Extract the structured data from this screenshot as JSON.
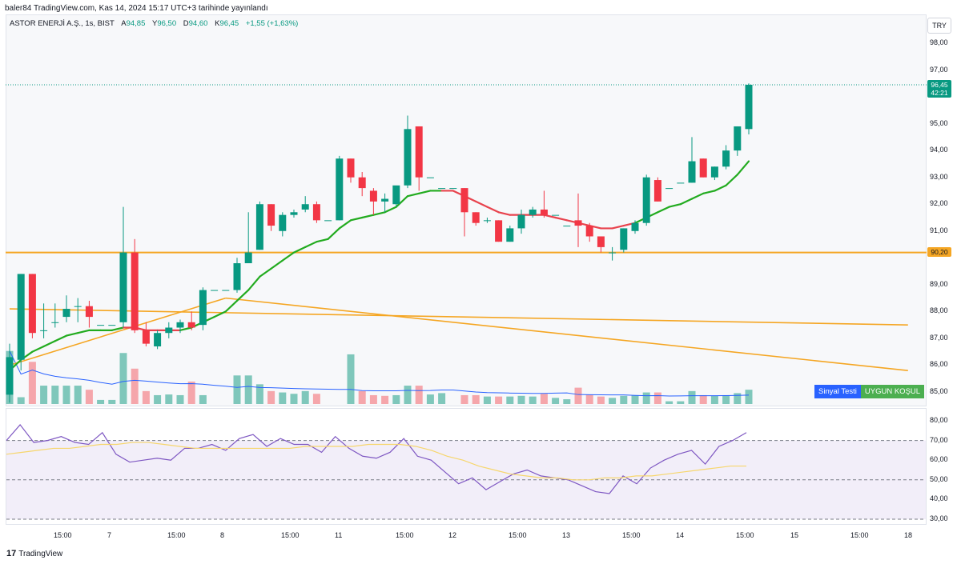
{
  "header": {
    "published": "baler84 TradingView.com, Kas 14, 2024 15:17 UTC+3 tarihinde yayınlandı"
  },
  "legend": {
    "symbol": "ASTOR ENERJİ A.Ş., 1s, BIST",
    "open_label": "A",
    "open": "94,85",
    "high_label": "Y",
    "high": "96,50",
    "low_label": "D",
    "low": "94,60",
    "close_label": "K",
    "close": "96,45",
    "change": "+1,55 (+1,63%)"
  },
  "currency_button": "TRY",
  "price_axis": [
    "98,00",
    "97,00",
    "95,00",
    "94,00",
    "93,00",
    "92,00",
    "91,00",
    "89,00",
    "88,00",
    "87,00",
    "86,00",
    "85,00"
  ],
  "rsi_axis": [
    "80,00",
    "70,00",
    "60,00",
    "50,00",
    "40,00",
    "30,00"
  ],
  "time_axis": [
    "15:00",
    "7",
    "15:00",
    "8",
    "15:00",
    "11",
    "15:00",
    "12",
    "15:00",
    "13",
    "15:00",
    "14",
    "15:00",
    "15",
    "15:00",
    "18"
  ],
  "last_price_tag": {
    "price": "96,45",
    "countdown": "42:21"
  },
  "support_tag": "90,20",
  "signal": {
    "label": "Sinyal Testi",
    "value": "UYGUN KOŞUL"
  },
  "footer": {
    "brand": "TradingView",
    "logo": "17"
  },
  "colors": {
    "up": "#089981",
    "down": "#f23645",
    "up_vol": "#7fc7bb",
    "down_vol": "#f5a6ab",
    "support": "#f5a623",
    "trend": "#f5a623",
    "ma_up": "#22ab1f",
    "ma_down": "#e8434d",
    "vol_ma": "#2962ff",
    "rsi": "#7e57c2",
    "rsi_ma": "#f6d66d",
    "signal_label_bg": "#2962ff",
    "signal_value_bg": "#4caf50"
  },
  "chart_data": {
    "type": "candlestick",
    "title": "ASTOR ENERJİ A.Ş., 1s, BIST",
    "ylim": [
      84.6,
      98.6
    ],
    "support_level": 90.2,
    "candles": [
      {
        "o": 84.9,
        "h": 86.8,
        "l": 84.6,
        "c": 86.3
      },
      {
        "o": 86.2,
        "h": 89.4,
        "l": 85.8,
        "c": 89.4
      },
      {
        "o": 89.4,
        "h": 89.4,
        "l": 87.0,
        "c": 87.2
      },
      {
        "o": 87.3,
        "h": 88.3,
        "l": 87.0,
        "c": 87.3
      },
      {
        "o": 87.6,
        "h": 88.3,
        "l": 87.4,
        "c": 87.6
      },
      {
        "o": 87.8,
        "h": 88.6,
        "l": 87.6,
        "c": 88.1
      },
      {
        "o": 88.2,
        "h": 88.5,
        "l": 87.6,
        "c": 88.2
      },
      {
        "o": 88.2,
        "h": 88.4,
        "l": 87.4,
        "c": 87.8
      },
      {
        "o": 87.5,
        "h": 87.5,
        "l": 87.5,
        "c": 87.5
      },
      {
        "o": 87.5,
        "h": 87.5,
        "l": 87.5,
        "c": 87.5
      },
      {
        "o": 87.6,
        "h": 91.9,
        "l": 87.4,
        "c": 90.2
      },
      {
        "o": 90.2,
        "h": 90.7,
        "l": 87.2,
        "c": 87.3
      },
      {
        "o": 87.3,
        "h": 87.6,
        "l": 86.7,
        "c": 86.8
      },
      {
        "o": 86.7,
        "h": 87.3,
        "l": 86.6,
        "c": 87.2
      },
      {
        "o": 87.2,
        "h": 87.6,
        "l": 87.0,
        "c": 87.4
      },
      {
        "o": 87.4,
        "h": 87.7,
        "l": 87.2,
        "c": 87.6
      },
      {
        "o": 87.6,
        "h": 88.0,
        "l": 87.3,
        "c": 87.4
      },
      {
        "o": 87.5,
        "h": 88.9,
        "l": 87.3,
        "c": 88.8
      },
      {
        "o": 88.8,
        "h": 88.8,
        "l": 88.8,
        "c": 88.8
      },
      {
        "o": 88.8,
        "h": 88.8,
        "l": 88.8,
        "c": 88.8
      },
      {
        "o": 88.8,
        "h": 90.0,
        "l": 88.7,
        "c": 89.8
      },
      {
        "o": 89.8,
        "h": 91.7,
        "l": 89.8,
        "c": 90.2
      },
      {
        "o": 90.3,
        "h": 92.1,
        "l": 90.3,
        "c": 92.0
      },
      {
        "o": 92.0,
        "h": 92.0,
        "l": 91.0,
        "c": 91.2
      },
      {
        "o": 91.0,
        "h": 91.7,
        "l": 90.8,
        "c": 91.6
      },
      {
        "o": 91.6,
        "h": 91.8,
        "l": 91.5,
        "c": 91.7
      },
      {
        "o": 91.8,
        "h": 92.3,
        "l": 91.7,
        "c": 92.0
      },
      {
        "o": 92.0,
        "h": 92.1,
        "l": 91.3,
        "c": 91.4
      },
      {
        "o": 91.4,
        "h": 91.4,
        "l": 91.4,
        "c": 91.4
      },
      {
        "o": 91.4,
        "h": 93.8,
        "l": 91.4,
        "c": 93.7
      },
      {
        "o": 93.7,
        "h": 93.7,
        "l": 92.8,
        "c": 93.0
      },
      {
        "o": 93.0,
        "h": 93.2,
        "l": 92.3,
        "c": 92.6
      },
      {
        "o": 92.5,
        "h": 92.6,
        "l": 91.6,
        "c": 92.1
      },
      {
        "o": 92.1,
        "h": 92.4,
        "l": 91.7,
        "c": 92.2
      },
      {
        "o": 92.0,
        "h": 92.6,
        "l": 91.9,
        "c": 92.7
      },
      {
        "o": 92.7,
        "h": 95.3,
        "l": 92.6,
        "c": 94.8
      },
      {
        "o": 94.9,
        "h": 94.9,
        "l": 92.5,
        "c": 93.0
      },
      {
        "o": 93.0,
        "h": 93.0,
        "l": 93.0,
        "c": 93.0
      },
      {
        "o": 92.6,
        "h": 92.6,
        "l": 92.6,
        "c": 92.6
      },
      {
        "o": 92.6,
        "h": 92.6,
        "l": 92.6,
        "c": 92.6
      },
      {
        "o": 92.6,
        "h": 92.6,
        "l": 90.8,
        "c": 91.7
      },
      {
        "o": 91.7,
        "h": 91.7,
        "l": 91.2,
        "c": 91.3
      },
      {
        "o": 91.4,
        "h": 91.5,
        "l": 91.3,
        "c": 91.4
      },
      {
        "o": 91.4,
        "h": 91.4,
        "l": 90.6,
        "c": 90.6
      },
      {
        "o": 90.6,
        "h": 91.2,
        "l": 90.6,
        "c": 91.1
      },
      {
        "o": 91.1,
        "h": 91.8,
        "l": 90.9,
        "c": 91.6
      },
      {
        "o": 91.6,
        "h": 91.9,
        "l": 91.5,
        "c": 91.8
      },
      {
        "o": 91.8,
        "h": 92.5,
        "l": 91.5,
        "c": 91.6
      },
      {
        "o": 91.6,
        "h": 91.6,
        "l": 91.6,
        "c": 91.6
      },
      {
        "o": 91.2,
        "h": 91.2,
        "l": 91.2,
        "c": 91.2
      },
      {
        "o": 91.4,
        "h": 92.4,
        "l": 90.4,
        "c": 91.2
      },
      {
        "o": 91.2,
        "h": 91.3,
        "l": 90.6,
        "c": 90.8
      },
      {
        "o": 90.8,
        "h": 90.8,
        "l": 90.2,
        "c": 90.4
      },
      {
        "o": 90.2,
        "h": 90.4,
        "l": 89.9,
        "c": 90.2
      },
      {
        "o": 90.3,
        "h": 91.1,
        "l": 90.2,
        "c": 91.1
      },
      {
        "o": 91.0,
        "h": 91.4,
        "l": 90.9,
        "c": 91.3
      },
      {
        "o": 91.3,
        "h": 93.1,
        "l": 91.2,
        "c": 93.0
      },
      {
        "o": 92.9,
        "h": 93.0,
        "l": 92.1,
        "c": 92.1
      },
      {
        "o": 92.6,
        "h": 92.6,
        "l": 92.6,
        "c": 92.6
      },
      {
        "o": 92.8,
        "h": 92.8,
        "l": 92.8,
        "c": 92.8
      },
      {
        "o": 92.8,
        "h": 94.5,
        "l": 92.8,
        "c": 93.6
      },
      {
        "o": 93.7,
        "h": 93.7,
        "l": 93.0,
        "c": 93.0
      },
      {
        "o": 93.0,
        "h": 93.4,
        "l": 92.9,
        "c": 93.4
      },
      {
        "o": 93.4,
        "h": 94.2,
        "l": 93.3,
        "c": 94.0
      },
      {
        "o": 94.0,
        "h": 94.9,
        "l": 93.8,
        "c": 94.9
      },
      {
        "o": 94.8,
        "h": 96.5,
        "l": 94.6,
        "c": 96.45
      }
    ],
    "volume": [
      78,
      10,
      62,
      27,
      27,
      27,
      27,
      21,
      6,
      6,
      75,
      52,
      19,
      13,
      14,
      13,
      33,
      13,
      0,
      0,
      42,
      42,
      29,
      19,
      17,
      15,
      19,
      15,
      0,
      0,
      73,
      19,
      13,
      12,
      13,
      27,
      27,
      14,
      16,
      0,
      13,
      13,
      11,
      11,
      11,
      12,
      11,
      15,
      9,
      7,
      24,
      14,
      11,
      9,
      12,
      13,
      17,
      17,
      4,
      4,
      19,
      13,
      12,
      13,
      16,
      21
    ],
    "volume_dir": [
      "u",
      "u",
      "d",
      "u",
      "u",
      "u",
      "u",
      "d",
      "u",
      "u",
      "u",
      "d",
      "d",
      "u",
      "u",
      "u",
      "d",
      "u",
      "u",
      "u",
      "u",
      "u",
      "u",
      "d",
      "u",
      "u",
      "u",
      "d",
      "u",
      "u",
      "u",
      "d",
      "d",
      "d",
      "u",
      "u",
      "d",
      "u",
      "u",
      "u",
      "d",
      "d",
      "u",
      "d",
      "u",
      "u",
      "u",
      "d",
      "u",
      "u",
      "d",
      "d",
      "d",
      "u",
      "u",
      "u",
      "u",
      "d",
      "u",
      "u",
      "u",
      "d",
      "u",
      "u",
      "u",
      "u"
    ],
    "ma": [
      85.8,
      86.2,
      86.5,
      86.7,
      86.9,
      87.1,
      87.2,
      87.3,
      87.3,
      87.3,
      87.4,
      87.4,
      87.3,
      87.3,
      87.3,
      87.3,
      87.4,
      87.6,
      87.8,
      88.0,
      88.4,
      88.8,
      89.3,
      89.6,
      89.9,
      90.2,
      90.4,
      90.6,
      90.7,
      91.1,
      91.4,
      91.5,
      91.6,
      91.7,
      91.9,
      92.3,
      92.4,
      92.5,
      92.5,
      92.5,
      92.3,
      92.1,
      91.9,
      91.7,
      91.6,
      91.6,
      91.6,
      91.6,
      91.5,
      91.4,
      91.3,
      91.2,
      91.1,
      91.1,
      91.2,
      91.3,
      91.5,
      91.7,
      91.9,
      92.0,
      92.2,
      92.4,
      92.5,
      92.7,
      93.1,
      93.6
    ],
    "ma_dir": [
      "u",
      "u",
      "u",
      "u",
      "u",
      "u",
      "u",
      "u",
      "u",
      "u",
      "u",
      "d",
      "d",
      "d",
      "d",
      "d",
      "u",
      "u",
      "u",
      "u",
      "u",
      "u",
      "u",
      "u",
      "u",
      "u",
      "u",
      "u",
      "u",
      "u",
      "u",
      "u",
      "u",
      "u",
      "u",
      "u",
      "u",
      "u",
      "u",
      "d",
      "d",
      "d",
      "d",
      "d",
      "d",
      "d",
      "d",
      "d",
      "d",
      "d",
      "d",
      "d",
      "d",
      "d",
      "d",
      "d",
      "u",
      "u",
      "u",
      "u",
      "u",
      "u",
      "u",
      "u",
      "u",
      "u"
    ],
    "trendlines": [
      {
        "from": [
          0,
          88.1
        ],
        "to": [
          79,
          87.5
        ]
      },
      {
        "from": [
          19,
          88.5
        ],
        "to": [
          79,
          85.8
        ]
      },
      {
        "from": [
          0,
          86.0
        ],
        "to": [
          19,
          88.5
        ]
      }
    ],
    "rsi": [
      70,
      78,
      69,
      70,
      72,
      69,
      68,
      74,
      63,
      59,
      60,
      61,
      60,
      66,
      66,
      68,
      65,
      71,
      73,
      67,
      71,
      68,
      68,
      64,
      72,
      66,
      62,
      61,
      64,
      71,
      62,
      60,
      54,
      48,
      51,
      45,
      49,
      53,
      55,
      52,
      51,
      50,
      47,
      44,
      43,
      52,
      48,
      56,
      60,
      63,
      65,
      58,
      67,
      70,
      74
    ],
    "rsi_ma": [
      63,
      64,
      65,
      66,
      66,
      67,
      68,
      68,
      69,
      69,
      68,
      67,
      66,
      66,
      66,
      66,
      66,
      66,
      66,
      67,
      67,
      67,
      67,
      68,
      68,
      68,
      67,
      65,
      62,
      60,
      57,
      55,
      53,
      52,
      51,
      51,
      50,
      50,
      51,
      51,
      52,
      52,
      53,
      54,
      55,
      56,
      57,
      57
    ],
    "rsi_levels": [
      70,
      50,
      30
    ],
    "rsi_ylim": [
      28,
      82
    ]
  }
}
